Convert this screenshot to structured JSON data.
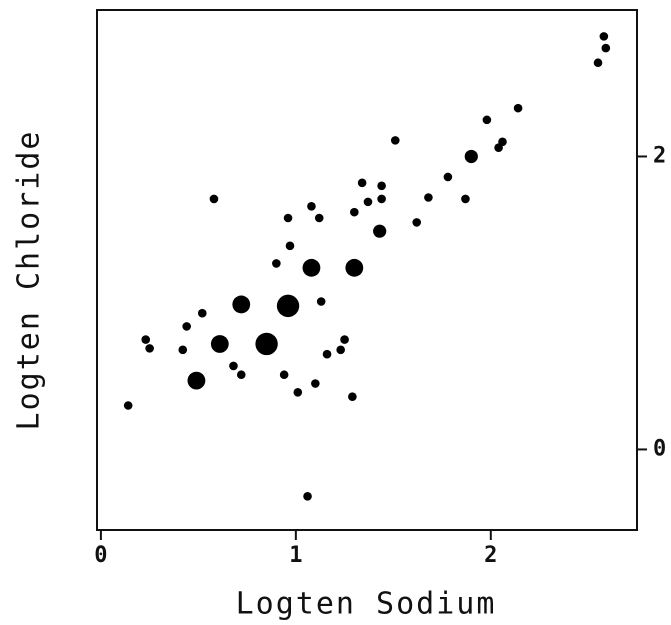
{
  "chart_data": {
    "type": "scatter",
    "x_label": "Logten Sodium",
    "y_label": "Logten Chloride",
    "xlim": [
      -0.02,
      2.75
    ],
    "ylim": [
      -0.55,
      3.0
    ],
    "xticks": [
      0,
      1,
      2
    ],
    "yticks": [
      0,
      2
    ],
    "y_axis_side": "right",
    "color": "#000000",
    "series": [
      {
        "x": [
          2.58,
          2.59,
          2.55,
          2.14,
          1.98,
          2.06,
          2.04,
          1.9,
          1.51,
          1.78,
          1.87,
          1.68,
          1.62,
          1.34,
          1.44,
          1.44,
          1.37,
          1.3,
          1.43,
          0.58,
          1.08,
          1.12,
          0.96,
          0.97,
          0.9,
          1.08,
          1.3,
          0.96,
          0.72,
          1.13,
          0.52,
          0.44,
          0.23,
          0.25,
          0.42,
          0.61,
          0.85,
          1.25,
          1.23,
          1.16,
          0.68,
          0.72,
          0.94,
          0.49,
          1.01,
          1.1,
          1.29,
          0.14,
          1.06
        ],
        "y": [
          2.82,
          2.74,
          2.64,
          2.33,
          2.25,
          2.1,
          2.06,
          2.0,
          2.11,
          1.86,
          1.71,
          1.72,
          1.55,
          1.82,
          1.8,
          1.71,
          1.69,
          1.62,
          1.49,
          1.71,
          1.66,
          1.58,
          1.58,
          1.39,
          1.27,
          1.24,
          1.24,
          0.98,
          0.99,
          1.01,
          0.93,
          0.84,
          0.75,
          0.69,
          0.68,
          0.72,
          0.72,
          0.75,
          0.68,
          0.65,
          0.57,
          0.51,
          0.51,
          0.47,
          0.39,
          0.45,
          0.36,
          0.3,
          -0.32
        ],
        "sizes": [
          1,
          1,
          1,
          1,
          1,
          1,
          1,
          2,
          1,
          1,
          1,
          1,
          1,
          1,
          1,
          1,
          1,
          1,
          2,
          1,
          1,
          1,
          1,
          1,
          1,
          3,
          3,
          4,
          3,
          1,
          1,
          1,
          1,
          1,
          1,
          3,
          4,
          1,
          1,
          1,
          1,
          1,
          1,
          3,
          1,
          1,
          1,
          1,
          1
        ]
      }
    ]
  }
}
